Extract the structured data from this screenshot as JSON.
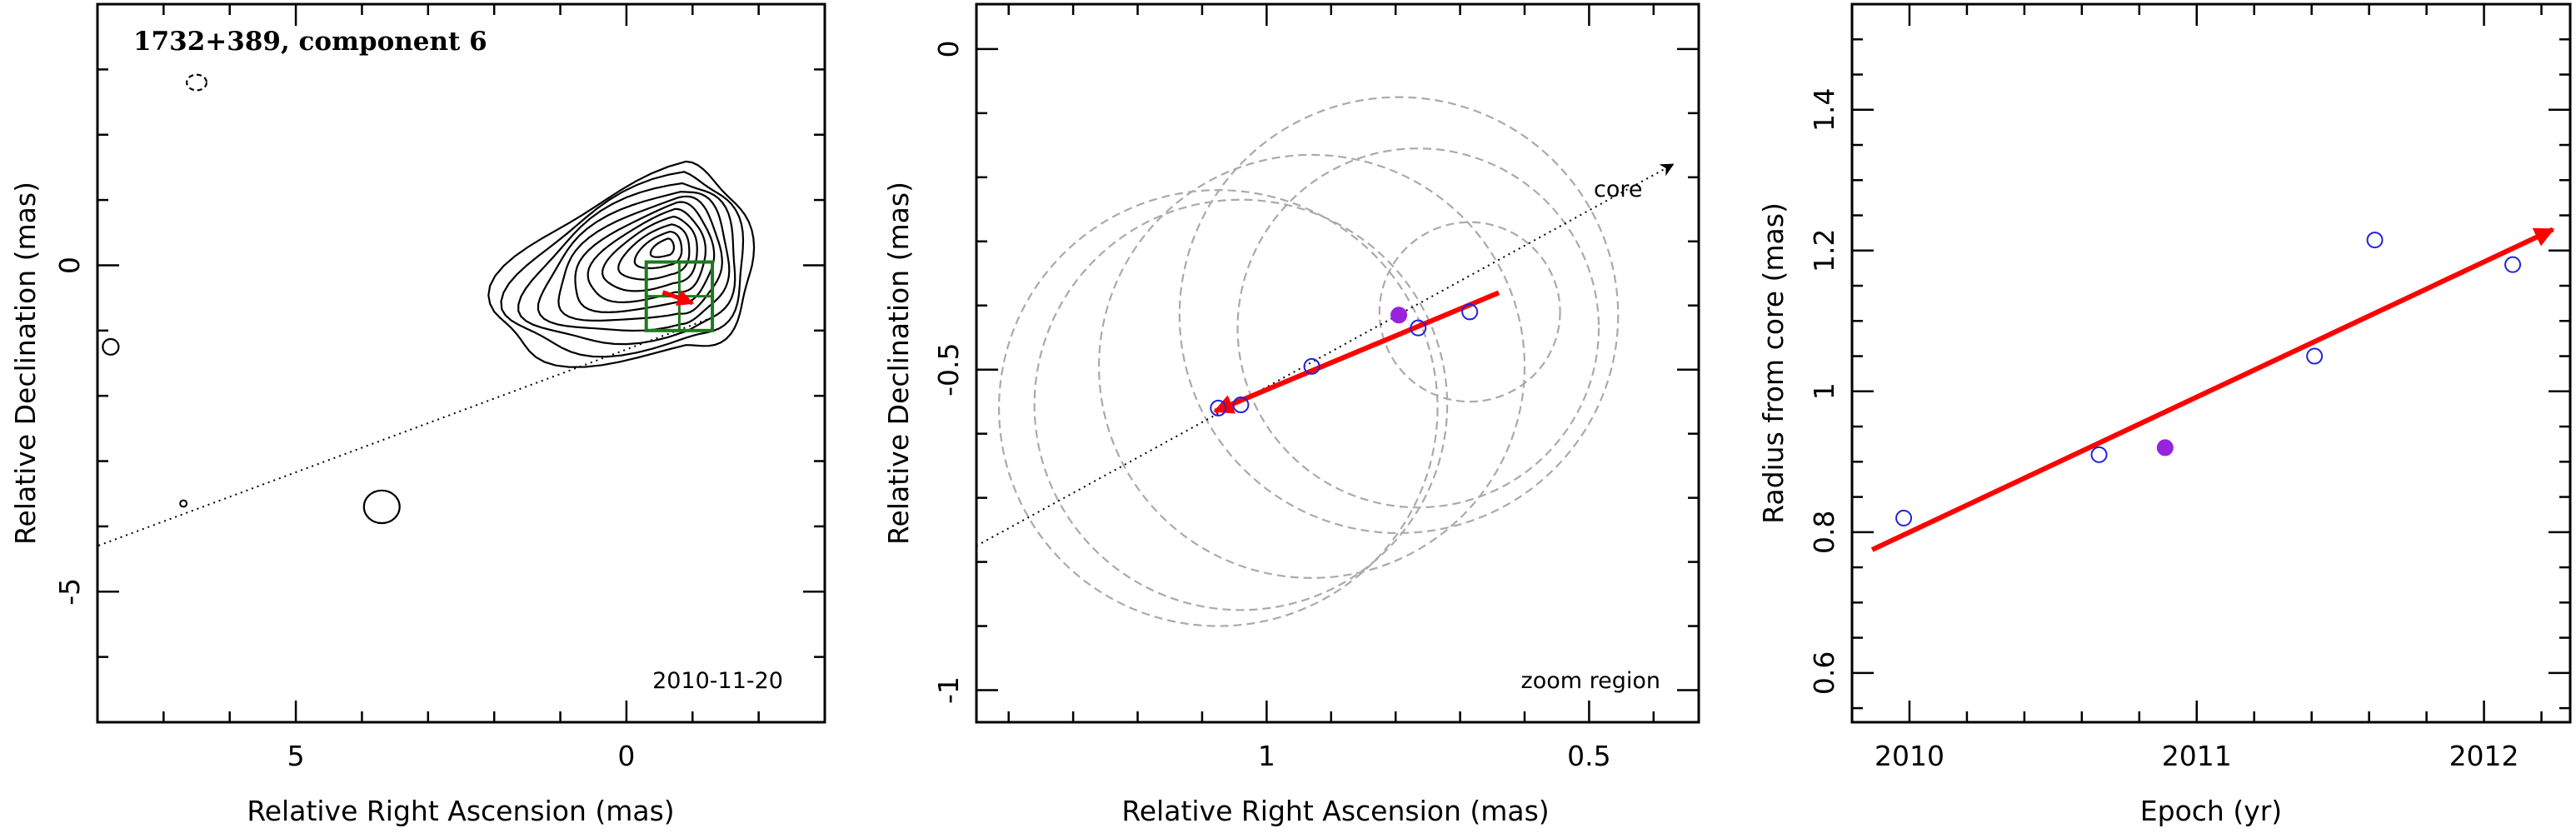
{
  "chart_data": [
    {
      "type": "contour",
      "title": "1732+389, component 6",
      "xlabel": "Relative Right Ascension (mas)",
      "ylabel": "Relative Declination (mas)",
      "xlim": [
        8,
        -3
      ],
      "ylim": [
        -7,
        4
      ],
      "xticks": [
        5,
        0
      ],
      "yticks": [
        0,
        -5
      ],
      "date_label": "2010-11-20",
      "core": [
        -0.7,
        0.5
      ],
      "jet_line": {
        "start": [
          -1.3,
          -0.8
        ],
        "end": [
          8,
          -4.3
        ]
      },
      "zoom_box": {
        "x": [
          -0.3,
          -1.3
        ],
        "y": [
          -1.0,
          0.05
        ]
      },
      "component_arrow": {
        "from": [
          -0.55,
          -0.41
        ],
        "to": [
          -1.0,
          -0.58
        ]
      },
      "colors": {
        "contour": "#000000",
        "box": "#1e7a1e",
        "arrow": "#ff0000"
      }
    },
    {
      "type": "scatter",
      "xlabel": "Relative Right Ascension (mas)",
      "ylabel": "Relative Declination (mas)",
      "xlim": [
        1.45,
        0.33
      ],
      "ylim": [
        -1.05,
        0.07
      ],
      "xticks": [
        1,
        0.5
      ],
      "yticks": [
        0,
        -0.5,
        -1
      ],
      "note": "zoom region",
      "core_label": "core",
      "points": [
        {
          "x": 1.075,
          "y": -0.56,
          "filled": false,
          "circle_r": 0.34
        },
        {
          "x": 1.04,
          "y": -0.555,
          "filled": false,
          "circle_r": 0.32
        },
        {
          "x": 0.93,
          "y": -0.495,
          "filled": false,
          "circle_r": 0.33
        },
        {
          "x": 0.795,
          "y": -0.415,
          "filled": true,
          "circle_r": 0.34
        },
        {
          "x": 0.765,
          "y": -0.435,
          "filled": false,
          "circle_r": 0.28
        },
        {
          "x": 0.685,
          "y": -0.41,
          "filled": false,
          "circle_r": 0.14
        }
      ],
      "arrow": {
        "from": [
          0.64,
          -0.38
        ],
        "to": [
          1.08,
          -0.565
        ]
      },
      "colors": {
        "point": "#2222dd",
        "point_filled": "#9922dd",
        "circle": "#aaaaaa",
        "arrow": "#ff0000"
      }
    },
    {
      "type": "scatter",
      "xlabel": "Epoch (yr)",
      "ylabel": "Radius from core (mas)",
      "xlim": [
        2009.8,
        2012.3
      ],
      "ylim": [
        0.53,
        1.55
      ],
      "xticks": [
        2010,
        2011,
        2012
      ],
      "yticks": [
        0.6,
        0.8,
        1,
        1.2,
        1.4
      ],
      "ytick_labels": [
        "0.6",
        "0.8",
        "1",
        "1.2",
        "1.4"
      ],
      "points": [
        {
          "x": 2009.98,
          "y": 0.82,
          "filled": false
        },
        {
          "x": 2010.66,
          "y": 0.91,
          "filled": false
        },
        {
          "x": 2010.89,
          "y": 0.92,
          "filled": true
        },
        {
          "x": 2011.41,
          "y": 1.05,
          "filled": false
        },
        {
          "x": 2011.62,
          "y": 1.215,
          "filled": false
        },
        {
          "x": 2012.1,
          "y": 1.18,
          "filled": false
        }
      ],
      "fit_arrow": {
        "from": [
          2009.87,
          0.775
        ],
        "to": [
          2012.24,
          1.23
        ]
      },
      "colors": {
        "point": "#2222dd",
        "point_filled": "#9922dd",
        "arrow": "#ff0000"
      }
    }
  ]
}
